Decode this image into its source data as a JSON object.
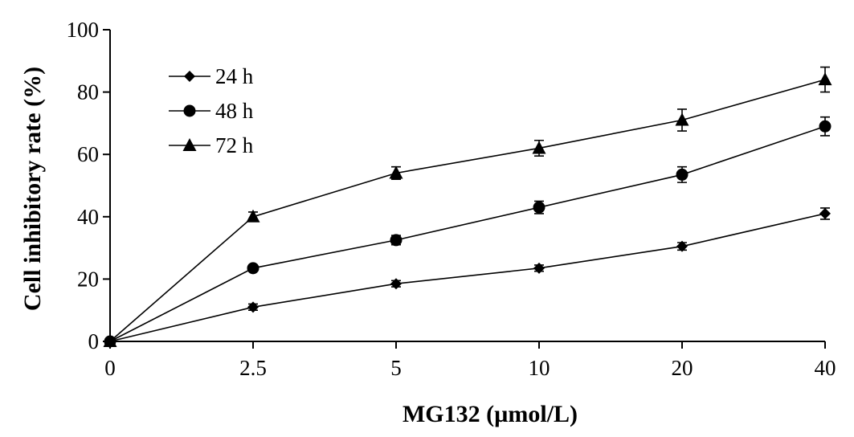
{
  "chart_data": {
    "type": "line",
    "categories": [
      "0",
      "2.5",
      "5",
      "10",
      "20",
      "40"
    ],
    "xlabel": "MG132 (µmol/L)",
    "ylabel": "Cell inhibitory rate (%)",
    "ylim": [
      0,
      100
    ],
    "yticks": [
      0,
      20,
      40,
      60,
      80,
      100
    ],
    "legend_position": "top-left",
    "grid": false,
    "series": [
      {
        "name": "24 h",
        "marker": "diamond",
        "values": [
          0,
          11,
          18.5,
          23.5,
          30.5,
          41
        ],
        "errors": [
          0,
          1,
          1,
          1,
          1.2,
          1.8
        ]
      },
      {
        "name": "48 h",
        "marker": "circle",
        "values": [
          0,
          23.5,
          32.5,
          43,
          53.5,
          69
        ],
        "errors": [
          0,
          1,
          1.5,
          2,
          2.5,
          3
        ]
      },
      {
        "name": "72 h",
        "marker": "triangle",
        "values": [
          0,
          40,
          54,
          62,
          71,
          84
        ],
        "errors": [
          0,
          1.5,
          2,
          2.5,
          3.5,
          4
        ]
      }
    ]
  }
}
